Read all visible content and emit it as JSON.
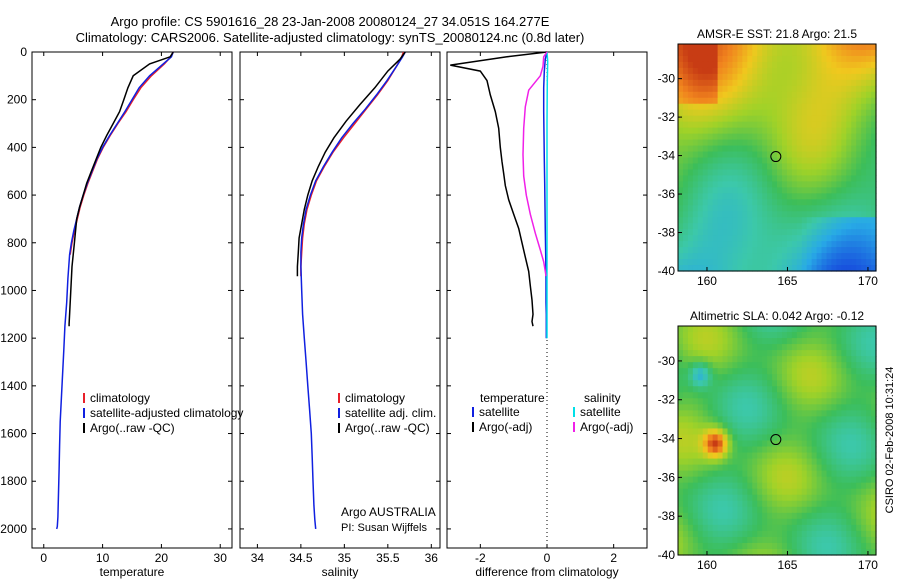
{
  "header": {
    "line1": "Argo profile: CS 5901616_28 23-Jan-2008 20080124_27 34.051S 164.277E",
    "line2": "Climatology: CARS2006. Satellite-adjusted climatology: synTS_20080124.nc (0.8d later)"
  },
  "colors": {
    "climatology": "#e8202a",
    "satellite": "#1020e0",
    "argo": "#000000",
    "cyan": "#00e0e8",
    "magenta": "#f020e8"
  },
  "chart_data": [
    {
      "type": "line",
      "id": "temperature",
      "xlabel": "temperature",
      "ylabel": "",
      "xlim": [
        -2,
        32
      ],
      "ylim": [
        0,
        2080
      ],
      "xticks": [
        0,
        10,
        20,
        30
      ],
      "yticks": [
        0,
        200,
        400,
        600,
        800,
        1000,
        1200,
        1400,
        1600,
        1800,
        2000
      ],
      "series": [
        {
          "name": "climatology",
          "color": "#e8202a",
          "x": [
            22,
            21.6,
            20.5,
            18.3,
            16.5,
            15.2,
            14,
            12.6,
            11.3,
            10.1,
            9.1,
            8.3,
            7.5,
            6.8,
            6.2,
            5.7,
            5.2,
            4.8,
            4.5
          ],
          "y": [
            0,
            20,
            50,
            100,
            150,
            200,
            250,
            300,
            350,
            400,
            450,
            500,
            550,
            600,
            650,
            700,
            750,
            800,
            850
          ]
        },
        {
          "name": "satellite-adjusted climatology",
          "color": "#1020e0",
          "x": [
            22,
            21.7,
            20.3,
            18,
            16.2,
            15,
            13.8,
            12.5,
            11.2,
            10,
            9,
            8.2,
            7.4,
            6.7,
            6.1,
            5.6,
            5.1,
            4.7,
            4.4,
            4.1,
            3.9,
            3.6,
            3.4,
            3.2,
            3,
            2.8,
            2.7,
            2.6,
            2.5,
            2.4,
            2.3,
            2.2
          ],
          "y": [
            0,
            20,
            50,
            100,
            150,
            200,
            250,
            300,
            350,
            400,
            450,
            500,
            550,
            600,
            650,
            700,
            750,
            800,
            850,
            950,
            1050,
            1150,
            1250,
            1350,
            1450,
            1550,
            1650,
            1750,
            1850,
            1950,
            1990,
            2000
          ]
        },
        {
          "name": "Argo(..raw -QC)",
          "color": "#000000",
          "x": [
            22,
            21.5,
            18,
            15.2,
            14.3,
            13.6,
            12.9,
            11.8,
            10.7,
            9.7,
            8.9,
            8.1,
            7.3,
            6.7,
            6.1,
            5.6,
            5.2,
            4.8,
            4.6,
            4.4,
            4.3,
            4.3
          ],
          "y": [
            0,
            20,
            50,
            100,
            150,
            200,
            250,
            300,
            350,
            400,
            450,
            500,
            550,
            600,
            650,
            700,
            800,
            900,
            1000,
            1100,
            1140,
            1150
          ]
        }
      ],
      "legend": [
        "climatology",
        "satellite-adjusted climatology",
        "Argo(..raw -QC)"
      ],
      "legend_position": "lower-right"
    },
    {
      "type": "line",
      "id": "salinity",
      "xlabel": "salinity",
      "xlim": [
        33.8,
        36.1
      ],
      "ylim": [
        0,
        2080
      ],
      "xticks": [
        34,
        34.5,
        35,
        35.5,
        36
      ],
      "series": [
        {
          "name": "climatology",
          "color": "#e8202a",
          "x": [
            35.68,
            35.66,
            35.6,
            35.5,
            35.38,
            35.25,
            35.12,
            34.99,
            34.87,
            34.77,
            34.68,
            34.62,
            34.57,
            34.54,
            34.52,
            34.51,
            34.5,
            34.5
          ],
          "y": [
            0,
            20,
            60,
            120,
            180,
            240,
            300,
            360,
            420,
            480,
            540,
            600,
            660,
            720,
            780,
            840,
            900,
            940
          ]
        },
        {
          "name": "satellite adj. clim.",
          "color": "#1020e0",
          "x": [
            35.7,
            35.67,
            35.6,
            35.49,
            35.37,
            35.24,
            35.1,
            34.97,
            34.86,
            34.76,
            34.67,
            34.61,
            34.56,
            34.53,
            34.51,
            34.5,
            34.5,
            34.51,
            34.52,
            34.54,
            34.56,
            34.58,
            34.6,
            34.62,
            34.63,
            34.64,
            34.65,
            34.66,
            34.67
          ],
          "y": [
            0,
            20,
            60,
            120,
            180,
            240,
            300,
            360,
            420,
            480,
            540,
            600,
            660,
            720,
            780,
            840,
            900,
            1000,
            1100,
            1200,
            1300,
            1400,
            1500,
            1600,
            1700,
            1800,
            1900,
            1960,
            2000
          ]
        },
        {
          "name": "Argo(..raw -QC)",
          "color": "#000000",
          "x": [
            35.7,
            35.64,
            35.5,
            35.35,
            35.18,
            35.02,
            34.88,
            34.78,
            34.7,
            34.63,
            34.58,
            34.54,
            34.51,
            34.48,
            34.47,
            34.46,
            34.46
          ],
          "y": [
            0,
            30,
            80,
            150,
            220,
            290,
            360,
            420,
            480,
            540,
            600,
            660,
            720,
            780,
            840,
            900,
            940
          ]
        }
      ],
      "legend": [
        "climatology",
        "satellite adj. clim.",
        "Argo(..raw -QC)"
      ],
      "annotation": [
        "Argo AUSTRALIA",
        "PI: Susan Wijffels"
      ]
    },
    {
      "type": "line",
      "id": "difference",
      "xlabel": "difference from climatology",
      "xlim": [
        -3,
        3
      ],
      "ylim": [
        0,
        2080
      ],
      "xticks": [
        -2,
        0,
        2
      ],
      "series": [
        {
          "name": "temperature satellite",
          "color": "#1020e0",
          "x": [
            0,
            -0.05,
            -0.08,
            -0.1,
            -0.1,
            -0.09,
            -0.08,
            -0.07,
            -0.06,
            -0.05,
            -0.04,
            -0.03,
            -0.03,
            -0.02,
            -0.02,
            -0.02,
            -0.02,
            -0.02
          ],
          "y": [
            0,
            30,
            80,
            150,
            250,
            350,
            450,
            550,
            650,
            750,
            850,
            950,
            1050,
            1100,
            1150,
            1180,
            1190,
            1200
          ]
        },
        {
          "name": "temperature Argo(-adj)",
          "color": "#000000",
          "x": [
            0,
            -1.2,
            -2.9,
            -2.0,
            -1.8,
            -1.7,
            -1.55,
            -1.45,
            -1.4,
            -1.35,
            -1.3,
            -1.25,
            -1.15,
            -1.0,
            -0.85,
            -0.75,
            -0.65,
            -0.55,
            -0.5,
            -0.45,
            -0.42,
            -0.45,
            -0.42
          ],
          "y": [
            0,
            20,
            55,
            80,
            120,
            180,
            250,
            320,
            400,
            460,
            510,
            560,
            620,
            680,
            740,
            800,
            860,
            920,
            980,
            1040,
            1100,
            1130,
            1150
          ]
        },
        {
          "name": "salinity satellite",
          "color": "#00e0e8",
          "x": [
            0,
            0.02,
            0.01,
            0,
            0,
            0,
            0,
            0
          ],
          "y": [
            0,
            40,
            120,
            300,
            600,
            900,
            1150,
            1200
          ]
        },
        {
          "name": "salinity Argo(-adj)",
          "color": "#f020e8",
          "x": [
            0,
            -0.1,
            -0.12,
            -0.2,
            -0.55,
            -0.65,
            -0.7,
            -0.72,
            -0.7,
            -0.62,
            -0.5,
            -0.35,
            -0.2,
            -0.1,
            -0.05,
            -0.03
          ],
          "y": [
            0,
            20,
            60,
            100,
            160,
            230,
            320,
            430,
            520,
            600,
            680,
            760,
            830,
            880,
            920,
            940
          ]
        }
      ],
      "legend_left": [
        "temperature",
        "satellite",
        "Argo(-adj)"
      ],
      "legend_right": [
        "salinity",
        "satellite",
        "Argo(-adj)"
      ]
    },
    {
      "type": "heatmap",
      "id": "sst_map",
      "title": "AMSR-E SST: 21.8 Argo: 21.5",
      "xlim": [
        158.2,
        170.5
      ],
      "ylim": [
        -40,
        -28.2
      ],
      "xticks": [
        160,
        165,
        170
      ],
      "yticks": [
        -30,
        -32,
        -34,
        -36,
        -38,
        -40
      ],
      "marker": {
        "lon": 164.277,
        "lat": -34.051
      }
    },
    {
      "type": "heatmap",
      "id": "sla_map",
      "title": "Altimetric SLA: 0.042 Argo: -0.12",
      "xlim": [
        158.2,
        170.5
      ],
      "ylim": [
        -40,
        -28.2
      ],
      "xticks": [
        160,
        165,
        170
      ],
      "yticks": [
        -30,
        -32,
        -34,
        -36,
        -38,
        -40
      ],
      "marker": {
        "lon": 164.277,
        "lat": -34.051
      }
    }
  ],
  "side_label": "CSIRO 02-Feb-2008 10:31:24"
}
